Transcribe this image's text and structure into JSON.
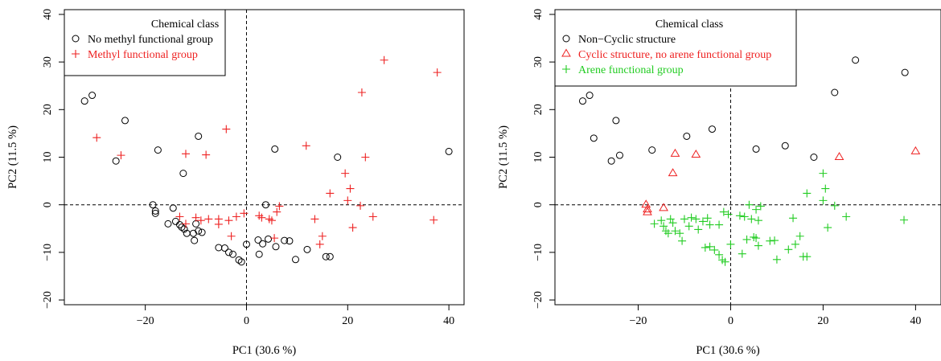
{
  "chart_data": [
    {
      "type": "scatter",
      "title": "",
      "xlabel": "PC1 (30.6 %)",
      "ylabel": "PC2 (11.5 %)",
      "xlim": [
        -36,
        43
      ],
      "ylim": [
        -21,
        41
      ],
      "xticks": [
        -20,
        0,
        20,
        40
      ],
      "yticks": [
        -20,
        -10,
        0,
        10,
        20,
        30,
        40
      ],
      "reference_lines": {
        "x": 0,
        "y": 0,
        "style": "dashed"
      },
      "legend": {
        "title": "Chemical class",
        "position": "top-left"
      },
      "series": [
        {
          "name": "No methyl functional group",
          "color": "#000000",
          "marker": "circle",
          "points": [
            [
              -32,
              21.8
            ],
            [
              -30.5,
              23
            ],
            [
              -24,
              17.7
            ],
            [
              -25.8,
              9.2
            ],
            [
              -17.5,
              11.5
            ],
            [
              -12.5,
              6.6
            ],
            [
              -9.5,
              14.4
            ],
            [
              -18.5,
              0
            ],
            [
              -18,
              -1.3
            ],
            [
              -18,
              -1.8
            ],
            [
              -15.5,
              -4
            ],
            [
              -14.5,
              -0.7
            ],
            [
              -14,
              -3.5
            ],
            [
              -13.2,
              -4.2
            ],
            [
              -12.8,
              -4.7
            ],
            [
              -12.3,
              -5.1
            ],
            [
              -11.8,
              -6
            ],
            [
              -10.5,
              -6
            ],
            [
              -10,
              -4
            ],
            [
              -9.5,
              -5.5
            ],
            [
              -8.8,
              -5.8
            ],
            [
              -10.3,
              -7.5
            ],
            [
              -5.5,
              -9
            ],
            [
              -4.3,
              -9.1
            ],
            [
              -3.5,
              -10
            ],
            [
              -2.7,
              -10.4
            ],
            [
              -1.5,
              -11.6
            ],
            [
              -1,
              -12
            ],
            [
              0,
              -8.3
            ],
            [
              2.3,
              -7.4
            ],
            [
              3.2,
              -8.2
            ],
            [
              4.3,
              -7.2
            ],
            [
              5.8,
              -8.8
            ],
            [
              7.5,
              -7.5
            ],
            [
              8.5,
              -7.6
            ],
            [
              2.5,
              -10.4
            ],
            [
              9.7,
              -11.5
            ],
            [
              12,
              -9.4
            ],
            [
              15.7,
              -10.9
            ],
            [
              16.5,
              -10.9
            ],
            [
              3.8,
              0
            ],
            [
              5.6,
              11.7
            ],
            [
              18,
              10
            ],
            [
              40,
              11.2
            ]
          ]
        },
        {
          "name": "Methyl functional group",
          "color": "#ee2222",
          "marker": "plus",
          "points": [
            [
              -29.6,
              14.1
            ],
            [
              -24.8,
              10.4
            ],
            [
              -12,
              10.7
            ],
            [
              -8,
              10.5
            ],
            [
              -4,
              15.9
            ],
            [
              -13.2,
              -2.5
            ],
            [
              -12,
              -4
            ],
            [
              -10,
              -2.7
            ],
            [
              -9,
              -3.3
            ],
            [
              -7.5,
              -3
            ],
            [
              -5.5,
              -3
            ],
            [
              -5.5,
              -4.1
            ],
            [
              -3.5,
              -3.3
            ],
            [
              -3,
              -6.6
            ],
            [
              -2,
              -2.5
            ],
            [
              -0.5,
              -1.8
            ],
            [
              2.5,
              -2.3
            ],
            [
              3,
              -2.7
            ],
            [
              4.5,
              -3
            ],
            [
              5,
              -3.3
            ],
            [
              6,
              -1.5
            ],
            [
              6.5,
              -0.3
            ],
            [
              5.5,
              -7
            ],
            [
              11.8,
              12.4
            ],
            [
              13.5,
              -3
            ],
            [
              14.5,
              -8.3
            ],
            [
              15,
              -6.6
            ],
            [
              16.5,
              2.4
            ],
            [
              19.5,
              6.6
            ],
            [
              20,
              0.9
            ],
            [
              20.5,
              3.4
            ],
            [
              21,
              -4.8
            ],
            [
              22.5,
              -0.2
            ],
            [
              22.8,
              23.6
            ],
            [
              23.5,
              10
            ],
            [
              25,
              -2.5
            ],
            [
              27.2,
              30.4
            ],
            [
              37,
              -3.2
            ],
            [
              37.7,
              27.8
            ]
          ]
        }
      ]
    },
    {
      "type": "scatter",
      "title": "",
      "xlabel": "PC1 (30.6 %)",
      "ylabel": "PC2 (11.5 %)",
      "xlim": [
        -38,
        45.5
      ],
      "ylim": [
        -21,
        41
      ],
      "xticks": [
        -20,
        0,
        20,
        40
      ],
      "yticks": [
        -20,
        -10,
        0,
        10,
        20,
        30,
        40
      ],
      "reference_lines": {
        "x": 0,
        "y": 0,
        "style": "dashed"
      },
      "legend": {
        "title": "Chemical class",
        "position": "top-left"
      },
      "series": [
        {
          "name": "Non−Cyclic structure",
          "color": "#000000",
          "marker": "circle",
          "points": [
            [
              -32,
              21.8
            ],
            [
              -30.5,
              23
            ],
            [
              -29.6,
              14
            ],
            [
              -24.8,
              17.7
            ],
            [
              -24,
              10.4
            ],
            [
              -25.8,
              9.2
            ],
            [
              -17,
              11.5
            ],
            [
              -9.5,
              14.4
            ],
            [
              -4,
              15.9
            ],
            [
              5.5,
              11.7
            ],
            [
              11.8,
              12.4
            ],
            [
              18,
              10
            ],
            [
              22.5,
              23.6
            ],
            [
              27,
              30.4
            ],
            [
              37.7,
              27.8
            ]
          ]
        },
        {
          "name": "Cyclic structure, no arene functional group",
          "color": "#ee2222",
          "marker": "triangle",
          "points": [
            [
              -12,
              10.7
            ],
            [
              -12.5,
              6.6
            ],
            [
              -7.5,
              10.5
            ],
            [
              -18.3,
              0
            ],
            [
              -18,
              -1
            ],
            [
              -18,
              -1.6
            ],
            [
              -14.5,
              -0.7
            ],
            [
              23.5,
              10
            ],
            [
              40,
              11.2
            ]
          ]
        },
        {
          "name": "Arene functional group",
          "color": "#22cc22",
          "marker": "plus",
          "points": [
            [
              -16.5,
              -4
            ],
            [
              -15,
              -3.3
            ],
            [
              -14.5,
              -4.5
            ],
            [
              -14,
              -5.5
            ],
            [
              -13.5,
              -6
            ],
            [
              -13,
              -3
            ],
            [
              -12.5,
              -3.8
            ],
            [
              -12,
              -5.5
            ],
            [
              -11,
              -6
            ],
            [
              -10.5,
              -7.6
            ],
            [
              -10,
              -3
            ],
            [
              -9,
              -4.5
            ],
            [
              -8.5,
              -2.7
            ],
            [
              -7.5,
              -3
            ],
            [
              -7,
              -5.2
            ],
            [
              -6,
              -3.5
            ],
            [
              -5,
              -2.8
            ],
            [
              -4.5,
              -4.2
            ],
            [
              -5.5,
              -9
            ],
            [
              -4.5,
              -8.8
            ],
            [
              -3.5,
              -9.5
            ],
            [
              -2.5,
              -4.2
            ],
            [
              -2.5,
              -10.5
            ],
            [
              -1.8,
              -11.6
            ],
            [
              -1.2,
              -12
            ],
            [
              -1.5,
              -1.5
            ],
            [
              -0.5,
              -2
            ],
            [
              0,
              -8.3
            ],
            [
              2,
              -2.3
            ],
            [
              2.5,
              -10.3
            ],
            [
              3,
              -2.5
            ],
            [
              3.5,
              -7.3
            ],
            [
              4.5,
              -3
            ],
            [
              4,
              0
            ],
            [
              5,
              -6.8
            ],
            [
              5.5,
              -1
            ],
            [
              6,
              -3.3
            ],
            [
              6.5,
              -0.3
            ],
            [
              5.5,
              -7
            ],
            [
              6,
              -8.6
            ],
            [
              8.5,
              -7.6
            ],
            [
              9.5,
              -7.5
            ],
            [
              10,
              -11.5
            ],
            [
              12.5,
              -9.4
            ],
            [
              13.5,
              -2.8
            ],
            [
              14,
              -8.3
            ],
            [
              15,
              -6.6
            ],
            [
              15.7,
              -10.9
            ],
            [
              16.5,
              -10.9
            ],
            [
              16.5,
              2.4
            ],
            [
              20,
              0.9
            ],
            [
              20,
              6.6
            ],
            [
              20.5,
              3.4
            ],
            [
              21,
              -4.8
            ],
            [
              22.5,
              -0.2
            ],
            [
              25,
              -2.5
            ],
            [
              37.5,
              -3.2
            ]
          ]
        }
      ]
    }
  ]
}
